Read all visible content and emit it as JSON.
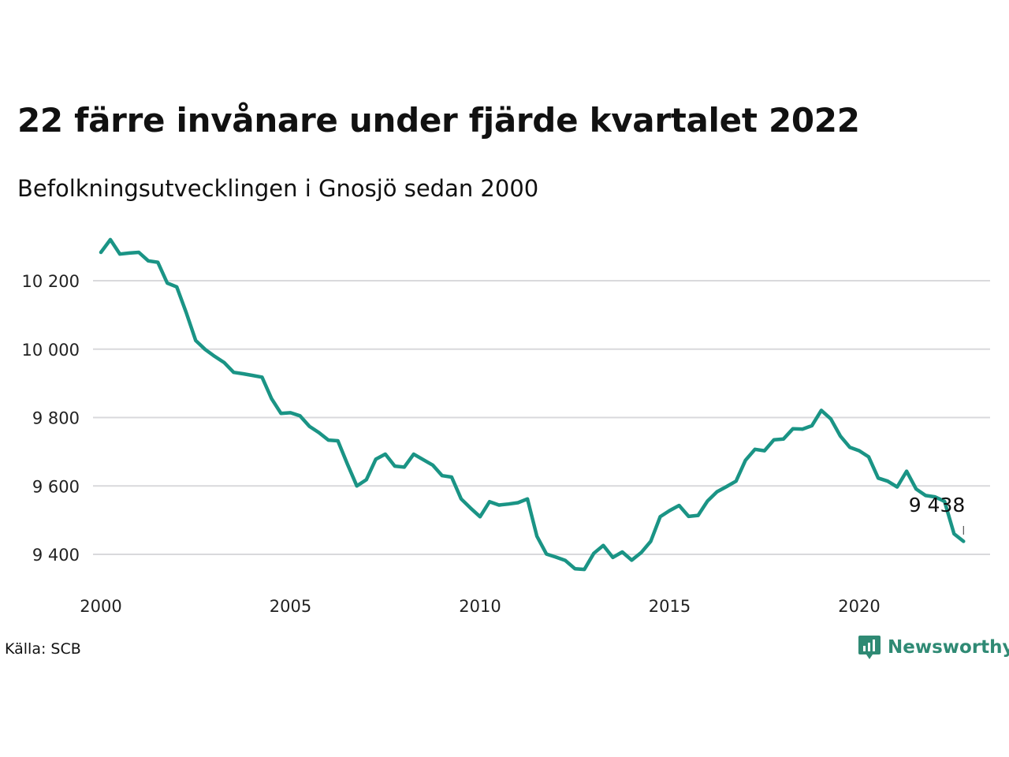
{
  "title": "22 färre invånare under fjärde kvartalet 2022",
  "subtitle": "Befolkningsutvecklingen i Gnosjö sedan 2000",
  "source": "Källa: SCB",
  "brand": {
    "name": "Newsworthy",
    "icon": "newsworthy-logo-icon",
    "color": "#2f8a74"
  },
  "colors": {
    "line": "#1a9485",
    "grid": "#d9d9dc",
    "text": "#222222"
  },
  "chart_data": {
    "type": "line",
    "title": "22 färre invånare under fjärde kvartalet 2022",
    "subtitle": "Befolkningsutvecklingen i Gnosjö sedan 2000",
    "xlabel": "",
    "ylabel": "",
    "x_ticks": [
      2000,
      2005,
      2010,
      2015,
      2020
    ],
    "x_tick_labels": [
      "2000",
      "2005",
      "2010",
      "2015",
      "2020"
    ],
    "y_ticks": [
      9400,
      9600,
      9800,
      10000,
      10200
    ],
    "y_tick_labels": [
      "9 400",
      "9 600",
      "9 800",
      "10 000",
      "10 200"
    ],
    "ylim": [
      9330,
      10340
    ],
    "xlim": [
      2000,
      2023.5
    ],
    "grid": true,
    "end_label": "9 438",
    "series": [
      {
        "values": [
          [
            2000.0,
            10283
          ],
          [
            2000.25,
            10320
          ],
          [
            2000.5,
            10278
          ],
          [
            2000.75,
            10281
          ],
          [
            2001.0,
            10283
          ],
          [
            2001.25,
            10258
          ],
          [
            2001.5,
            10254
          ],
          [
            2001.75,
            10193
          ],
          [
            2002.0,
            10182
          ],
          [
            2002.25,
            10107
          ],
          [
            2002.5,
            10025
          ],
          [
            2002.75,
            9999
          ],
          [
            2003.0,
            9979
          ],
          [
            2003.25,
            9961
          ],
          [
            2003.5,
            9932
          ],
          [
            2003.75,
            9928
          ],
          [
            2004.0,
            9923
          ],
          [
            2004.25,
            9918
          ],
          [
            2004.5,
            9855
          ],
          [
            2004.75,
            9812
          ],
          [
            2005.0,
            9814
          ],
          [
            2005.25,
            9805
          ],
          [
            2005.5,
            9774
          ],
          [
            2005.75,
            9756
          ],
          [
            2006.0,
            9734
          ],
          [
            2006.25,
            9732
          ],
          [
            2006.5,
            9664
          ],
          [
            2006.75,
            9600
          ],
          [
            2007.0,
            9618
          ],
          [
            2007.25,
            9678
          ],
          [
            2007.5,
            9693
          ],
          [
            2007.75,
            9658
          ],
          [
            2008.0,
            9655
          ],
          [
            2008.25,
            9693
          ],
          [
            2008.5,
            9677
          ],
          [
            2008.75,
            9661
          ],
          [
            2009.0,
            9630
          ],
          [
            2009.25,
            9626
          ],
          [
            2009.5,
            9562
          ],
          [
            2009.75,
            9535
          ],
          [
            2010.0,
            9510
          ],
          [
            2010.25,
            9554
          ],
          [
            2010.5,
            9544
          ],
          [
            2010.75,
            9547
          ],
          [
            2011.0,
            9551
          ],
          [
            2011.25,
            9562
          ],
          [
            2011.5,
            9453
          ],
          [
            2011.75,
            9401
          ],
          [
            2012.0,
            9392
          ],
          [
            2012.25,
            9382
          ],
          [
            2012.5,
            9358
          ],
          [
            2012.75,
            9356
          ],
          [
            2013.0,
            9403
          ],
          [
            2013.25,
            9426
          ],
          [
            2013.5,
            9391
          ],
          [
            2013.75,
            9407
          ],
          [
            2014.0,
            9383
          ],
          [
            2014.25,
            9405
          ],
          [
            2014.5,
            9438
          ],
          [
            2014.75,
            9510
          ],
          [
            2015.0,
            9528
          ],
          [
            2015.25,
            9543
          ],
          [
            2015.5,
            9511
          ],
          [
            2015.75,
            9514
          ],
          [
            2016.0,
            9556
          ],
          [
            2016.25,
            9583
          ],
          [
            2016.5,
            9598
          ],
          [
            2016.75,
            9614
          ],
          [
            2017.0,
            9675
          ],
          [
            2017.25,
            9707
          ],
          [
            2017.5,
            9703
          ],
          [
            2017.75,
            9735
          ],
          [
            2018.0,
            9737
          ],
          [
            2018.25,
            9767
          ],
          [
            2018.5,
            9766
          ],
          [
            2018.75,
            9776
          ],
          [
            2019.0,
            9821
          ],
          [
            2019.25,
            9796
          ],
          [
            2019.5,
            9746
          ],
          [
            2019.75,
            9713
          ],
          [
            2020.0,
            9703
          ],
          [
            2020.25,
            9685
          ],
          [
            2020.5,
            9623
          ],
          [
            2020.75,
            9614
          ],
          [
            2021.0,
            9597
          ],
          [
            2021.25,
            9643
          ],
          [
            2021.5,
            9591
          ],
          [
            2021.75,
            9572
          ],
          [
            2022.0,
            9568
          ],
          [
            2022.25,
            9555
          ],
          [
            2022.5,
            9460
          ],
          [
            2022.75,
            9438
          ]
        ]
      }
    ]
  }
}
